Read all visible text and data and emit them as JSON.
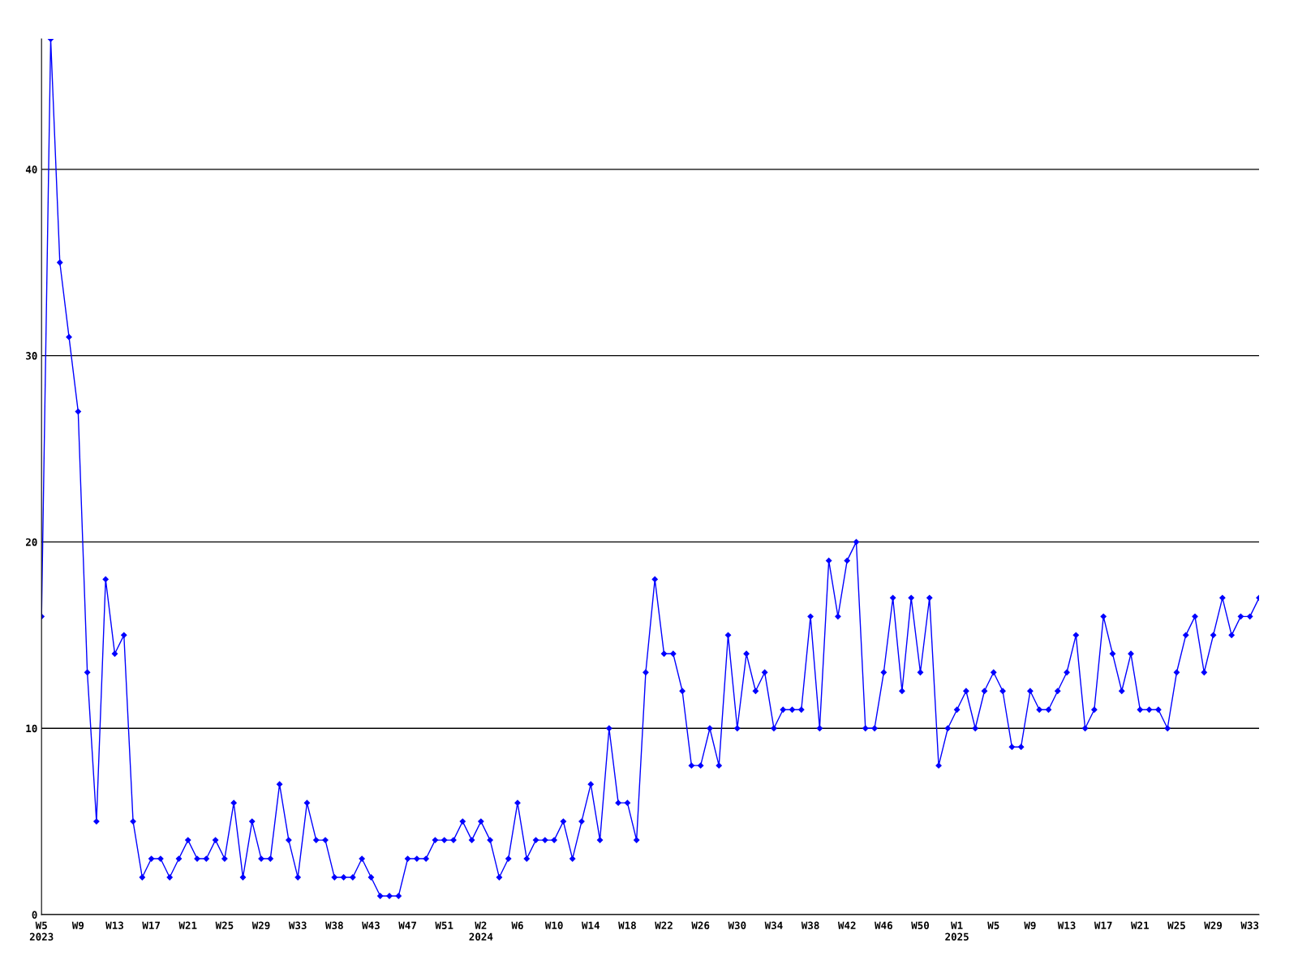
{
  "chart_data": {
    "type": "line",
    "categories": [
      "W5\n2023",
      null,
      null,
      null,
      "W9",
      null,
      null,
      null,
      "W13",
      null,
      null,
      null,
      "W17",
      null,
      null,
      null,
      "W21",
      null,
      null,
      null,
      "W25",
      null,
      null,
      null,
      "W29",
      null,
      null,
      null,
      "W33",
      null,
      null,
      null,
      "W38",
      null,
      null,
      null,
      "W43",
      null,
      null,
      null,
      "W47",
      null,
      null,
      null,
      "W51",
      null,
      null,
      null,
      "W2\n2024",
      null,
      null,
      null,
      "W6",
      null,
      null,
      null,
      "W10",
      null,
      null,
      null,
      "W14",
      null,
      null,
      null,
      "W18",
      null,
      null,
      null,
      "W22",
      null,
      null,
      null,
      "W26",
      null,
      null,
      null,
      "W30",
      null,
      null,
      null,
      "W34",
      null,
      null,
      null,
      "W38",
      null,
      null,
      null,
      "W42",
      null,
      null,
      null,
      "W46",
      null,
      null,
      null,
      "W50",
      null,
      null,
      null,
      "W1\n2025",
      null,
      null,
      null,
      "W5",
      null,
      null,
      null,
      "W9",
      null,
      null,
      null,
      "W13",
      null,
      null,
      null,
      "W17",
      null,
      null,
      null,
      "W21",
      null,
      null,
      null,
      "W25",
      null,
      null,
      null,
      "W29",
      null,
      null,
      null,
      "W33",
      null
    ],
    "series": [
      {
        "color": "#0000ff",
        "values": [
          16,
          47,
          35,
          31,
          27,
          13,
          5,
          18,
          14,
          15,
          5,
          2,
          3,
          3,
          2,
          3,
          4,
          3,
          3,
          4,
          3,
          6,
          2,
          5,
          3,
          3,
          7,
          4,
          2,
          6,
          4,
          4,
          2,
          2,
          2,
          3,
          2,
          1,
          1,
          1,
          3,
          3,
          3,
          4,
          4,
          4,
          5,
          4,
          5,
          4,
          2,
          3,
          6,
          3,
          4,
          4,
          4,
          5,
          3,
          5,
          7,
          4,
          10,
          6,
          6,
          4,
          13,
          18,
          14,
          14,
          12,
          8,
          8,
          10,
          8,
          15,
          10,
          14,
          12,
          13,
          10,
          11,
          11,
          11,
          16,
          10,
          19,
          16,
          19,
          20,
          10,
          10,
          13,
          17,
          12,
          17,
          13,
          17,
          8,
          10,
          11,
          12,
          10,
          12,
          13,
          12,
          9,
          9,
          12,
          11,
          11,
          12,
          13,
          15,
          10,
          11,
          16,
          14,
          12,
          14,
          11,
          11,
          11,
          10,
          13,
          15,
          16,
          13,
          15,
          17,
          15,
          16,
          16,
          17
        ]
      }
    ],
    "ylim": [
      0,
      47
    ],
    "yticks": [
      0,
      10,
      20,
      30,
      40
    ],
    "grid": "y",
    "marker": "diamond",
    "line_style": "solid"
  }
}
